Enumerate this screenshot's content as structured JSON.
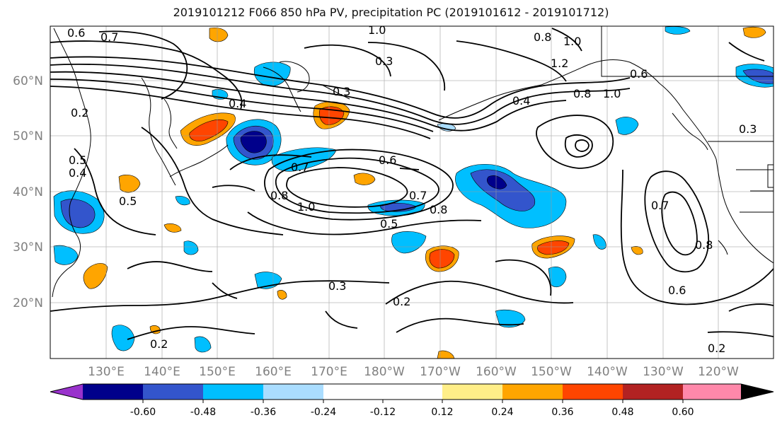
{
  "title": "2019101212 F066 850 hPa PV, precipitation PC (2019101612 - 2019101712)",
  "lat_labels": [
    "60°N",
    "50°N",
    "40°N",
    "30°N",
    "20°N"
  ],
  "lon_labels": [
    "130°E",
    "140°E",
    "150°E",
    "160°E",
    "170°E",
    "180°W",
    "170°W",
    "160°W",
    "150°W",
    "140°W",
    "130°W",
    "120°W"
  ],
  "colorbar": {
    "colors": [
      "#9932CC",
      "#00008B",
      "#3355CC",
      "#00BFFF",
      "#AADDFF",
      "#FFFFFF",
      "#FFEE88",
      "#FFA500",
      "#FF4500",
      "#B22222",
      "#FF88AA"
    ],
    "tick_labels": [
      "-0.60",
      "-0.48",
      "-0.36",
      "-0.24",
      "-0.12",
      "0.12",
      "0.24",
      "0.36",
      "0.48",
      "0.60"
    ]
  },
  "contour_labels": [
    {
      "text": "0.6"
    },
    {
      "text": "0.7"
    },
    {
      "text": "1.0"
    },
    {
      "text": "0.8"
    },
    {
      "text": "1.0"
    },
    {
      "text": "1.2"
    },
    {
      "text": "0.6"
    },
    {
      "text": "0.8"
    },
    {
      "text": "1.0"
    },
    {
      "text": "0.4"
    },
    {
      "text": "0.3"
    },
    {
      "text": "0.3"
    },
    {
      "text": "0.2"
    },
    {
      "text": "0.4"
    },
    {
      "text": "0.5"
    },
    {
      "text": "0.4"
    },
    {
      "text": "0.5"
    },
    {
      "text": "0.7"
    },
    {
      "text": "0.6"
    },
    {
      "text": "0.7"
    },
    {
      "text": "0.8"
    },
    {
      "text": "0.5"
    },
    {
      "text": "0.8"
    },
    {
      "text": "1.0"
    },
    {
      "text": "0.3"
    },
    {
      "text": "0.2"
    },
    {
      "text": "0.2"
    },
    {
      "text": "0.7"
    },
    {
      "text": "0.8"
    },
    {
      "text": "0.6"
    },
    {
      "text": "0.2"
    },
    {
      "text": "0.3"
    }
  ]
}
